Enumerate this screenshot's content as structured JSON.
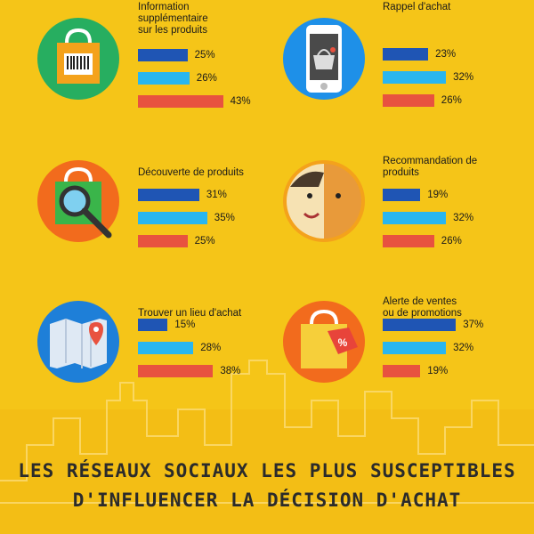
{
  "chart_data": {
    "type": "bar",
    "title": "LES RÉSEAUX SOCIAUX LES PLUS SUSCEPTIBLES D'INFLUENCER LA DÉCISION D'ACHAT",
    "title_lines": [
      "LES RÉSEAUX SOCIAUX LES PLUS SUSCEPTIBLES",
      "D'INFLUENCER LA DÉCISION D'ACHAT"
    ],
    "series_colors": [
      "#1f55b4",
      "#29b6ef",
      "#e8523f"
    ],
    "xlim": [
      0,
      45
    ],
    "panels": [
      {
        "title": "Information supplémentaire sur les produits",
        "title_lines": [
          "Information",
          "supplémentaire",
          "sur les produits"
        ],
        "icon": "shopping-bag-barcode-icon",
        "values": [
          25,
          26,
          43
        ]
      },
      {
        "title": "Rappel d'achat",
        "title_lines": [
          "Rappel d'achat"
        ],
        "icon": "smartphone-basket-icon",
        "values": [
          23,
          32,
          26
        ]
      },
      {
        "title": "Découverte de produits",
        "title_lines": [
          "Découverte de produits"
        ],
        "icon": "bag-magnifier-icon",
        "values": [
          31,
          35,
          25
        ]
      },
      {
        "title": "Recommandation de produits",
        "title_lines": [
          "Recommandation de",
          "produits"
        ],
        "icon": "two-faces-icon",
        "values": [
          19,
          32,
          26
        ]
      },
      {
        "title": "Trouver un lieu d'achat",
        "title_lines": [
          "Trouver un lieu d'achat"
        ],
        "icon": "map-pin-icon",
        "values": [
          15,
          28,
          38
        ]
      },
      {
        "title": "Alerte de ventes ou de promotions",
        "title_lines": [
          "Alerte de ventes",
          "ou de promotions"
        ],
        "icon": "bag-percent-tag-icon",
        "values": [
          37,
          32,
          19
        ]
      }
    ]
  }
}
